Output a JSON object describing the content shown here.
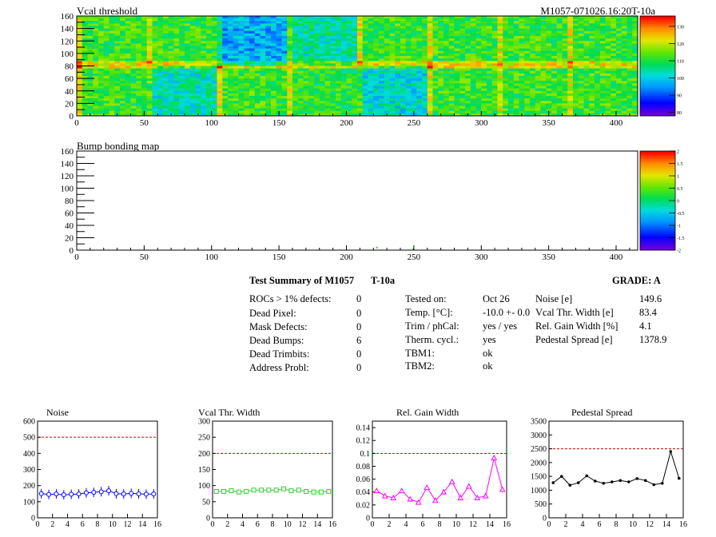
{
  "maps": [
    {
      "title": "Vcal threshold",
      "run_label": "M1057-071026.16:20T-10a",
      "x_ticks": [
        0,
        50,
        100,
        150,
        200,
        250,
        300,
        350,
        400
      ],
      "y_ticks": [
        0,
        20,
        40,
        60,
        80,
        100,
        120,
        140,
        160
      ],
      "xlim": [
        0,
        416
      ],
      "ylim": [
        0,
        160
      ],
      "colorbar_ticks": [
        "130",
        "120",
        "110",
        "100",
        "90",
        "80"
      ],
      "colorbar_range": [
        78,
        136
      ]
    },
    {
      "title": "Bump bonding map",
      "x_ticks": [
        0,
        50,
        100,
        150,
        200,
        250,
        300,
        350,
        400
      ],
      "y_ticks": [
        0,
        20,
        40,
        60,
        80,
        100,
        120,
        140,
        160
      ],
      "xlim": [
        0,
        416
      ],
      "ylim": [
        0,
        160
      ],
      "colorbar_ticks": [
        "2",
        "1.5",
        "1",
        "0.5",
        "0",
        "-0.5",
        "-1",
        "-1.5",
        "-2"
      ],
      "colorbar_range": [
        -2,
        2
      ]
    }
  ],
  "summary": {
    "title": "Test Summary of M1057",
    "temp_tag": "T-10a",
    "grade": "GRADE:  A",
    "defects": [
      {
        "label": "ROCs > 1% defects:",
        "value": "0"
      },
      {
        "label": "Dead Pixel:",
        "value": "0"
      },
      {
        "label": "Mask Defects:",
        "value": "0"
      },
      {
        "label": "Dead Bumps:",
        "value": "6"
      },
      {
        "label": "Dead Trimbits:",
        "value": "0"
      },
      {
        "label": "Address Probl:",
        "value": "0"
      }
    ],
    "conditions": [
      {
        "label": "Tested on:",
        "value": "Oct 26"
      },
      {
        "label": "Temp. [°C]:",
        "value": "-10.0 +- 0.0"
      },
      {
        "label": "Trim / phCal:",
        "value": "yes / yes"
      },
      {
        "label": "Therm. cycl.:",
        "value": "yes"
      },
      {
        "label": "TBM1:",
        "value": "ok"
      },
      {
        "label": "TBM2:",
        "value": "ok"
      }
    ],
    "measurements": [
      {
        "label": "Noise [e]",
        "value": "149.6"
      },
      {
        "label": "Vcal Thr. Width [e]",
        "value": "83.4"
      },
      {
        "label": "Rel. Gain Width [%]",
        "value": "4.1"
      },
      {
        "label": "Pedestal Spread [e]",
        "value": "1378.9"
      }
    ]
  },
  "chart_data": [
    {
      "type": "line",
      "title": "Noise",
      "x": [
        0,
        1,
        2,
        3,
        4,
        5,
        6,
        7,
        8,
        9,
        10,
        11,
        12,
        13,
        14,
        15
      ],
      "series": [
        {
          "values": [
            150,
            145,
            148,
            143,
            146,
            148,
            155,
            158,
            162,
            168,
            150,
            148,
            152,
            149,
            147,
            148
          ],
          "color": "#0000ff",
          "marker": "circle-errbar"
        }
      ],
      "x_ticks": [
        0,
        2,
        4,
        6,
        8,
        10,
        12,
        14,
        16
      ],
      "y_ticks": [
        0,
        100,
        200,
        300,
        400,
        500,
        600
      ],
      "xlim": [
        0,
        16
      ],
      "ylim": [
        0,
        600
      ],
      "limit_line": 500,
      "limit_color": "#cc0000"
    },
    {
      "type": "line",
      "title": "Vcal Thr. Width",
      "x": [
        0,
        1,
        2,
        3,
        4,
        5,
        6,
        7,
        8,
        9,
        10,
        11,
        12,
        13,
        14,
        15
      ],
      "series": [
        {
          "values": [
            82,
            82,
            84,
            80,
            82,
            86,
            86,
            86,
            86,
            90,
            84,
            86,
            82,
            80,
            80,
            82
          ],
          "color": "#33cc33",
          "marker": "square"
        }
      ],
      "x_ticks": [
        0,
        2,
        4,
        6,
        8,
        10,
        12,
        14,
        16
      ],
      "y_ticks": [
        0,
        50,
        100,
        150,
        200,
        250,
        300
      ],
      "xlim": [
        0,
        16
      ],
      "ylim": [
        0,
        300
      ],
      "limit_line": 200,
      "limit_color": "#cc0000"
    },
    {
      "type": "line",
      "title": "Rel. Gain Width",
      "x": [
        0,
        1,
        2,
        3,
        4,
        5,
        6,
        7,
        8,
        9,
        10,
        11,
        12,
        13,
        14,
        15
      ],
      "series": [
        {
          "values": [
            0.042,
            0.034,
            0.031,
            0.042,
            0.029,
            0.024,
            0.047,
            0.027,
            0.04,
            0.056,
            0.031,
            0.049,
            0.031,
            0.034,
            0.093,
            0.044
          ],
          "color": "#ff00ff",
          "marker": "triangle"
        }
      ],
      "x_ticks": [
        0,
        2,
        4,
        6,
        8,
        10,
        12,
        14,
        16
      ],
      "y_ticks": [
        0,
        0.02,
        0.04,
        0.06,
        0.08,
        0.1,
        0.12,
        0.14
      ],
      "xlim": [
        0,
        16
      ],
      "ylim": [
        0,
        0.15
      ],
      "limit_line": 0.1,
      "limit_color": "#cc0000"
    },
    {
      "type": "line",
      "title": "Pedestal Spread",
      "x": [
        0,
        1,
        2,
        3,
        4,
        5,
        6,
        7,
        8,
        9,
        10,
        11,
        12,
        13,
        14,
        15
      ],
      "series": [
        {
          "values": [
            1270,
            1500,
            1180,
            1270,
            1520,
            1330,
            1250,
            1300,
            1350,
            1300,
            1420,
            1350,
            1200,
            1250,
            2400,
            1430
          ],
          "color": "#000000",
          "marker": "dot"
        }
      ],
      "x_ticks": [
        0,
        2,
        4,
        6,
        8,
        10,
        12,
        14,
        16
      ],
      "y_ticks": [
        0,
        500,
        1000,
        1500,
        2000,
        2500,
        3000,
        3500
      ],
      "xlim": [
        0,
        16
      ],
      "ylim": [
        0,
        3500
      ],
      "limit_line": 2500,
      "limit_color": "#cc0000"
    }
  ]
}
